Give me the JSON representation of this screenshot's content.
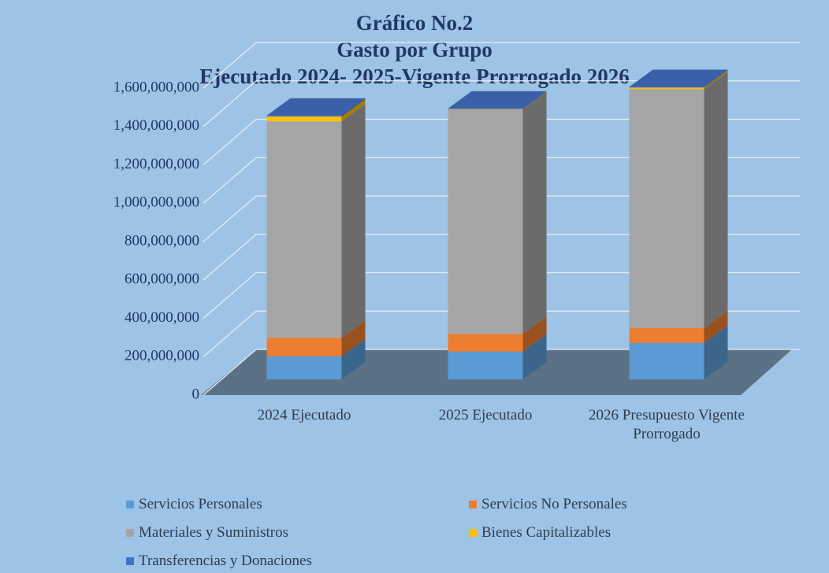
{
  "chart_data": {
    "type": "bar3d_stacked",
    "title": [
      "Gráfico No.2",
      "Gasto por Grupo",
      "Ejecutado 2024- 2025-Vigente Prorrogado 2026"
    ],
    "categories": [
      "2024 Ejecutado",
      "2025 Ejecutado",
      "2026 Presupuesto Vigente Prorrogado"
    ],
    "series": [
      {
        "name": "Servicios Personales",
        "color": "#5b9bd5",
        "values": [
          120000000,
          145000000,
          190000000
        ]
      },
      {
        "name": "Servicios No Personales",
        "color": "#ed7d31",
        "values": [
          97000000,
          92000000,
          77000000
        ]
      },
      {
        "name": "Materiales y Suministros",
        "color": "#a5a5a5",
        "values": [
          1128000000,
          1170000000,
          1246000000
        ]
      },
      {
        "name": "Bienes Capitalizables",
        "color": "#ffc000",
        "values": [
          25000000,
          2000000,
          8000000
        ]
      },
      {
        "name": "Transferencias y Donaciones",
        "color": "#4472c4",
        "values": [
          5000000,
          3000000,
          3000000
        ]
      }
    ],
    "ylim": [
      0,
      1600000000
    ],
    "yticks": [
      0,
      {
        "value": 200000000,
        "label": "200,000,000"
      },
      {
        "value": 400000000,
        "label": "400,000,000"
      },
      {
        "value": 600000000,
        "label": "600,000,000"
      },
      {
        "value": 800000000,
        "label": "800,000,000"
      },
      {
        "value": 1000000000,
        "label": "1,000,000,000"
      },
      {
        "value": 1200000000,
        "label": "1,200,000,000"
      },
      {
        "value": 1400000000,
        "label": "1,400,000,000"
      },
      {
        "value": 1600000000,
        "label": "1,600,000,000"
      }
    ],
    "grid": true,
    "legend": "bottom"
  }
}
